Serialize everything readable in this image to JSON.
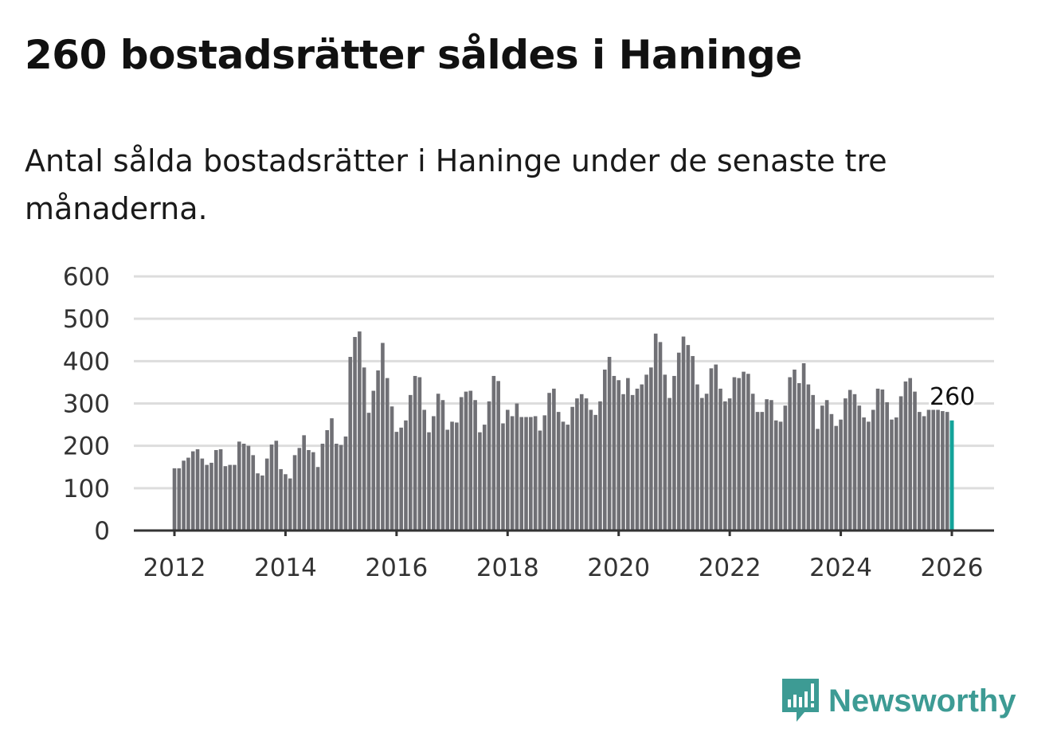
{
  "title": "260 bostadsrätter såldes i Haninge",
  "subtitle": "Antal sålda bostadsrätter i Haninge under de senaste tre månaderna.",
  "brand": "Newsworthy",
  "colors": {
    "bar": "#707075",
    "highlight": "#14a39a",
    "grid": "#dddddd",
    "axis": "#333333",
    "brand": "#3d9b94"
  },
  "chart_data": {
    "type": "bar",
    "title": "260 bostadsrätter såldes i Haninge",
    "xlabel": "",
    "ylabel": "",
    "ylim": [
      0,
      600
    ],
    "yticks": [
      "0",
      "100",
      "200",
      "300",
      "400",
      "500",
      "600"
    ],
    "xticks": [
      "2012",
      "2014",
      "2016",
      "2018",
      "2020",
      "2022",
      "2024",
      "2026"
    ],
    "start": "2012-01",
    "frequency": "monthly",
    "grid": true,
    "annotation": {
      "label": "260",
      "index": 168
    },
    "values": [
      147,
      147,
      165,
      172,
      187,
      192,
      170,
      155,
      160,
      190,
      192,
      152,
      155,
      155,
      210,
      205,
      200,
      178,
      135,
      130,
      170,
      203,
      212,
      145,
      133,
      123,
      178,
      195,
      225,
      190,
      185,
      150,
      205,
      237,
      265,
      205,
      202,
      222,
      410,
      457,
      470,
      385,
      278,
      330,
      378,
      443,
      360,
      293,
      233,
      243,
      260,
      320,
      365,
      362,
      285,
      232,
      270,
      323,
      308,
      238,
      257,
      255,
      315,
      328,
      330,
      308,
      232,
      250,
      305,
      365,
      353,
      253,
      285,
      270,
      300,
      268,
      268,
      268,
      270,
      236,
      272,
      325,
      335,
      280,
      257,
      250,
      292,
      312,
      322,
      312,
      285,
      273,
      305,
      380,
      410,
      365,
      355,
      322,
      360,
      320,
      335,
      345,
      368,
      385,
      465,
      445,
      368,
      313,
      365,
      420,
      458,
      438,
      412,
      345,
      313,
      323,
      383,
      392,
      335,
      305,
      312,
      362,
      360,
      375,
      370,
      323,
      280,
      280,
      310,
      308,
      260,
      257,
      295,
      362,
      380,
      348,
      395,
      345,
      320,
      240,
      295,
      308,
      275,
      247,
      262,
      312,
      332,
      322,
      295,
      267,
      257,
      285,
      335,
      333,
      303,
      262,
      267,
      317,
      352,
      360,
      328,
      280,
      270,
      285,
      285,
      285,
      282,
      280,
      260
    ]
  }
}
